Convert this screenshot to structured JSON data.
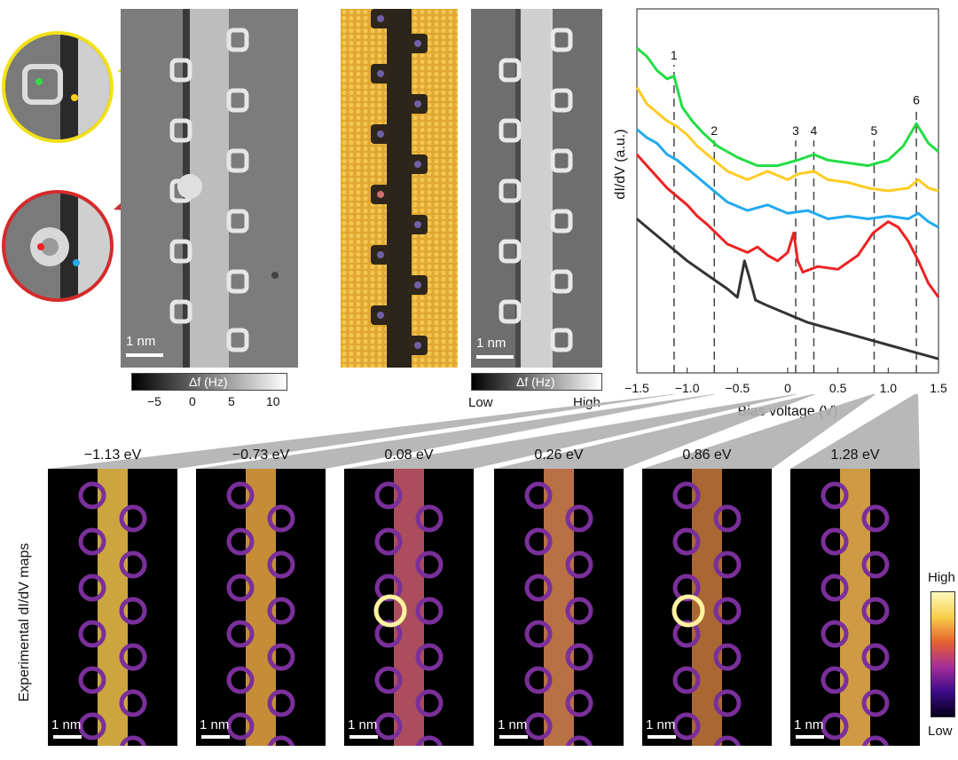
{
  "top": {
    "afm_scale": "1 nm",
    "afm_colorbar_label": "Δf (Hz)",
    "afm_colorbar_ticks": [
      "−5",
      "0",
      "5",
      "10"
    ],
    "sim_scale": "1 nm",
    "sim_colorbar_label": "Δf (Hz)",
    "sim_colorbar_low": "Low",
    "sim_colorbar_high": "High"
  },
  "chart_data": {
    "type": "line",
    "xlabel": "Bias voltage (V)",
    "ylabel": "dI/dV (a.u.)",
    "xlim": [
      -1.5,
      1.5
    ],
    "xticks": [
      "−1.5",
      "−1.0",
      "−0.5",
      "0",
      "0.5",
      "1.0",
      "1.5"
    ],
    "markers": [
      {
        "label": "1",
        "x": -1.13
      },
      {
        "label": "2",
        "x": -0.73
      },
      {
        "label": "3",
        "x": 0.08
      },
      {
        "label": "4",
        "x": 0.26
      },
      {
        "label": "5",
        "x": 0.86
      },
      {
        "label": "6",
        "x": 1.28
      }
    ],
    "series": [
      {
        "color": "#22dd44",
        "x": [
          -1.5,
          -1.4,
          -1.3,
          -1.2,
          -1.13,
          -1.05,
          -0.95,
          -0.85,
          -0.7,
          -0.5,
          -0.3,
          -0.1,
          0.1,
          0.26,
          0.4,
          0.6,
          0.8,
          1.0,
          1.15,
          1.28,
          1.4,
          1.5
        ],
        "y": [
          9.6,
          9.3,
          8.8,
          8.5,
          8.6,
          7.5,
          7.0,
          6.6,
          6.1,
          5.7,
          5.4,
          5.4,
          5.6,
          5.8,
          5.6,
          5.5,
          5.4,
          5.6,
          6.1,
          6.9,
          6.2,
          5.9
        ]
      },
      {
        "color": "#ffcc22",
        "x": [
          -1.5,
          -1.4,
          -1.3,
          -1.2,
          -1.1,
          -1.0,
          -0.9,
          -0.8,
          -0.6,
          -0.4,
          -0.2,
          0.0,
          0.1,
          0.26,
          0.4,
          0.6,
          0.8,
          1.0,
          1.2,
          1.3,
          1.4,
          1.5
        ],
        "y": [
          8.2,
          7.6,
          7.3,
          7.0,
          6.8,
          6.5,
          6.1,
          5.8,
          5.2,
          4.9,
          5.2,
          4.9,
          5.1,
          5.2,
          4.9,
          4.8,
          4.6,
          4.5,
          4.6,
          4.9,
          4.6,
          4.5
        ]
      },
      {
        "color": "#22aaee",
        "x": [
          -1.5,
          -1.4,
          -1.3,
          -1.2,
          -1.1,
          -1.0,
          -0.9,
          -0.8,
          -0.6,
          -0.4,
          -0.2,
          0.0,
          0.2,
          0.4,
          0.6,
          0.8,
          1.0,
          1.2,
          1.3,
          1.4,
          1.5
        ],
        "y": [
          6.7,
          6.4,
          6.2,
          5.8,
          5.6,
          5.3,
          5.0,
          4.7,
          4.1,
          3.8,
          4.0,
          3.7,
          3.8,
          3.5,
          3.6,
          3.5,
          3.6,
          3.5,
          3.7,
          3.4,
          3.2
        ]
      },
      {
        "color": "#ee2222",
        "x": [
          -1.5,
          -1.4,
          -1.3,
          -1.2,
          -1.1,
          -1.0,
          -0.9,
          -0.8,
          -0.6,
          -0.4,
          -0.3,
          -0.2,
          -0.1,
          0.0,
          0.06,
          0.1,
          0.15,
          0.3,
          0.5,
          0.7,
          0.85,
          1.0,
          1.1,
          1.2,
          1.3,
          1.4,
          1.5
        ],
        "y": [
          5.8,
          5.4,
          5.0,
          4.6,
          4.3,
          4.0,
          3.6,
          3.3,
          2.6,
          2.3,
          2.5,
          2.2,
          2.0,
          2.3,
          3.0,
          2.0,
          1.6,
          1.8,
          1.7,
          2.2,
          3.0,
          3.4,
          3.2,
          2.7,
          2.0,
          1.2,
          0.7
        ]
      },
      {
        "color": "#333333",
        "x": [
          -1.5,
          -1.4,
          -1.3,
          -1.2,
          -1.0,
          -0.8,
          -0.6,
          -0.5,
          -0.43,
          -0.38,
          -0.32,
          -0.2,
          0.0,
          0.2,
          0.4,
          0.6,
          0.8,
          1.0,
          1.2,
          1.4,
          1.5
        ],
        "y": [
          3.5,
          3.2,
          2.9,
          2.6,
          2.0,
          1.5,
          1.0,
          0.7,
          2.0,
          1.4,
          0.6,
          0.4,
          0.1,
          -0.2,
          -0.4,
          -0.6,
          -0.8,
          -1.0,
          -1.2,
          -1.4,
          -1.5
        ]
      }
    ]
  },
  "maps": {
    "ylabel": "Experimental dI/dV maps",
    "scale": "1 nm",
    "colorbar_high": "High",
    "colorbar_low": "Low",
    "titles": [
      "−1.13 eV",
      "−0.73 eV",
      "0.08 eV",
      "0.26 eV",
      "0.86 eV",
      "1.28 eV"
    ],
    "bias": [
      -1.13,
      -0.73,
      0.08,
      0.26,
      0.86,
      1.28
    ]
  }
}
